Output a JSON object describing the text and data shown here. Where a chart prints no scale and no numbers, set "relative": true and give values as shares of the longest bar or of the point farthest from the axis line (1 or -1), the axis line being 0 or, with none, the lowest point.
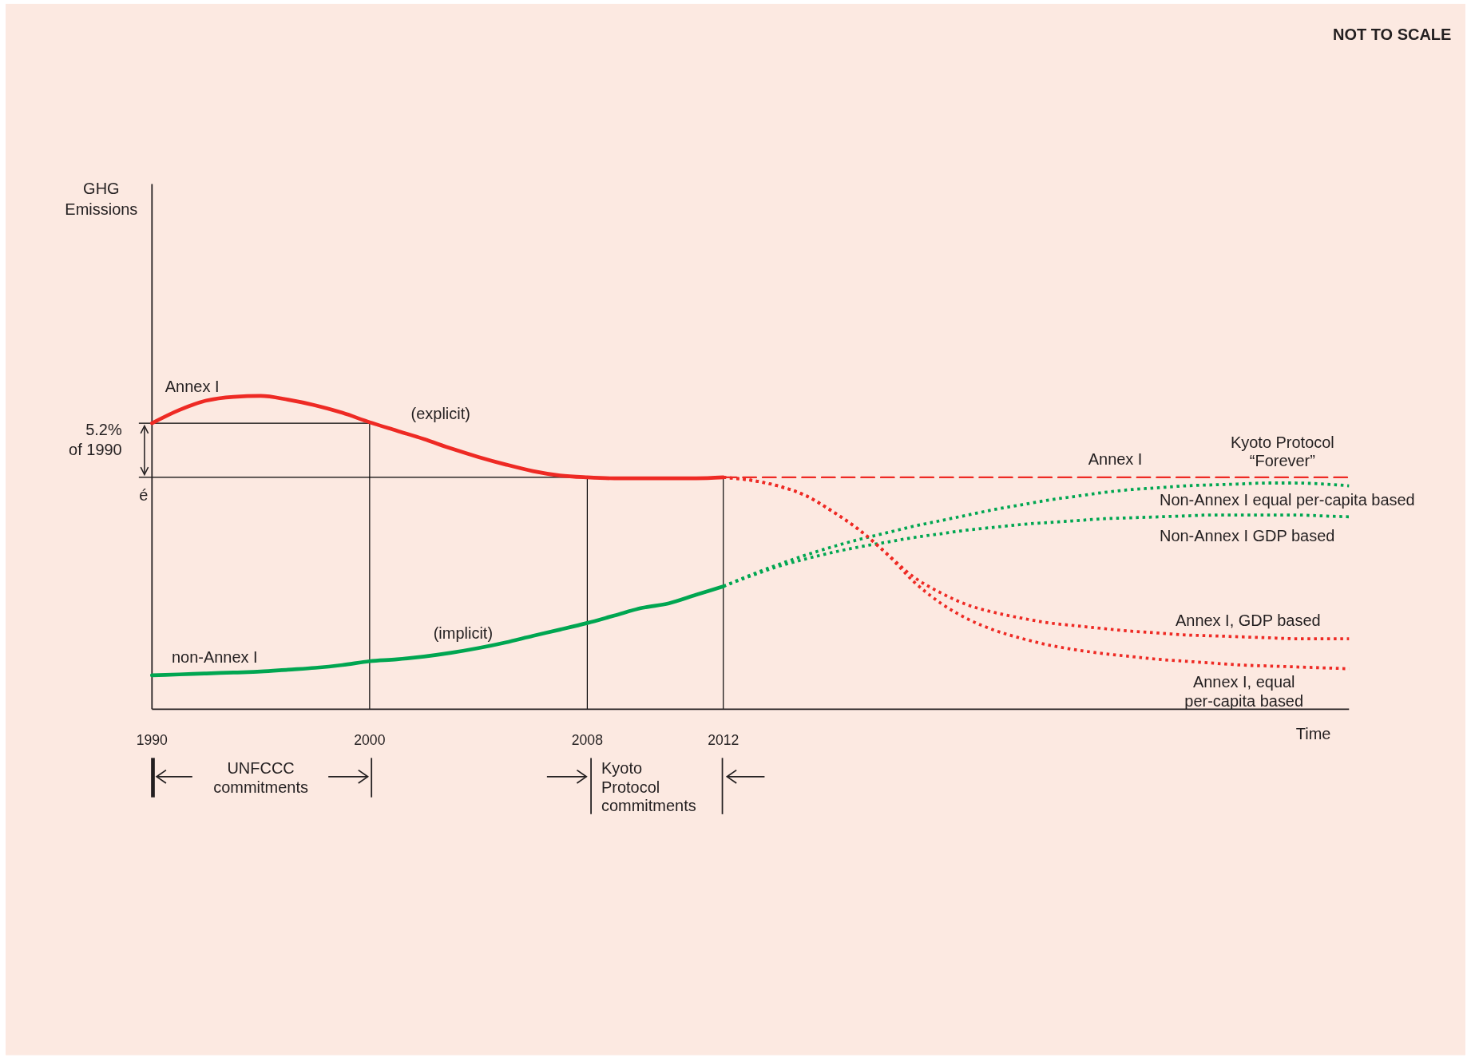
{
  "chart_data": {
    "type": "line",
    "relative": true,
    "xlabel": "Time",
    "categories": [
      "1990",
      null,
      null,
      null,
      null,
      null,
      null,
      null,
      "2000",
      null,
      null,
      null,
      null,
      null,
      null,
      null,
      "2008",
      null,
      null,
      null,
      null,
      "2012",
      null,
      null,
      null,
      null,
      null,
      null,
      null,
      null,
      null,
      null,
      null,
      null,
      null,
      null,
      null,
      null,
      null,
      null,
      null,
      null,
      null,
      null,
      null
    ],
    "annotations": [
      "NOT TO SCALE",
      "(explicit)",
      "(implicit)",
      "5.2%\nof  1990",
      "é",
      "Kyoto Protocol\n“Forever”",
      "UNFCCC\ncommitments",
      "Kyoto\nProtocol\ncommitments",
      "GHG\nEmissions"
    ],
    "ref_lines": [
      {
        "axis": "y",
        "value": 0.913,
        "color": "#000000"
      },
      {
        "axis": "y",
        "value": 0.74,
        "color": "#000000"
      },
      {
        "axis": "x",
        "value": "2000",
        "color": "#000000"
      },
      {
        "axis": "x",
        "value": "2008",
        "color": "#000000"
      },
      {
        "axis": "x",
        "value": "2012",
        "color": "#000000"
      }
    ],
    "series": [
      {
        "name": "Annex I",
        "color": "#ee2a24",
        "line_style": "solid",
        "values": [
          0.913,
          0.955,
          0.985,
          0.997,
          1,
          0.988,
          0.97,
          0.946,
          0.916,
          0.889,
          0.862,
          0.832,
          0.805,
          0.781,
          0.76,
          0.746,
          0.74,
          0.737,
          0.737,
          0.737,
          0.737,
          0.74,
          null,
          null,
          null,
          null,
          null,
          null,
          null,
          null,
          null,
          null,
          null,
          null,
          null,
          null,
          null,
          null,
          null,
          null,
          null,
          null,
          null,
          null,
          null
        ]
      },
      {
        "name": "non-Annex I",
        "color": "#00a651",
        "line_style": "solid",
        "values": [
          0.108,
          0.111,
          0.114,
          0.117,
          0.12,
          0.126,
          0.132,
          0.141,
          0.153,
          0.159,
          0.168,
          0.18,
          0.195,
          0.213,
          0.234,
          0.254,
          0.275,
          0.299,
          0.323,
          0.338,
          0.365,
          0.392,
          null,
          null,
          null,
          null,
          null,
          null,
          null,
          null,
          null,
          null,
          null,
          null,
          null,
          null,
          null,
          null,
          null,
          null,
          null,
          null,
          null,
          null,
          null
        ]
      },
      {
        "name": "Annex I",
        "color": "#ee2a24",
        "line_style": "dashed",
        "values": [
          null,
          null,
          null,
          null,
          null,
          null,
          null,
          null,
          null,
          null,
          null,
          null,
          null,
          null,
          null,
          null,
          null,
          null,
          null,
          null,
          null,
          0.74,
          0.74,
          0.74,
          0.74,
          0.74,
          0.74,
          0.74,
          0.74,
          0.74,
          0.74,
          0.74,
          0.74,
          0.74,
          0.74,
          0.74,
          0.74,
          0.74,
          0.74,
          0.74,
          0.74,
          0.74,
          0.74,
          0.74,
          0.74
        ]
      },
      {
        "name": "Non-Annex I equal per-capita based",
        "color": "#00a651",
        "line_style": "dotted",
        "values": [
          null,
          null,
          null,
          null,
          null,
          null,
          null,
          null,
          null,
          null,
          null,
          null,
          null,
          null,
          null,
          null,
          null,
          null,
          null,
          null,
          null,
          0.392,
          0.428,
          0.461,
          0.491,
          0.518,
          0.542,
          0.563,
          0.584,
          0.602,
          0.62,
          0.638,
          0.653,
          0.668,
          0.68,
          0.692,
          0.701,
          0.707,
          0.713,
          0.716,
          0.719,
          0.722,
          0.722,
          0.719,
          0.713
        ]
      },
      {
        "name": "Non-Annex I GDP based",
        "color": "#00a651",
        "line_style": "dotted",
        "values": [
          null,
          null,
          null,
          null,
          null,
          null,
          null,
          null,
          null,
          null,
          null,
          null,
          null,
          null,
          null,
          null,
          null,
          null,
          null,
          null,
          null,
          0.392,
          0.425,
          0.455,
          0.479,
          0.5,
          0.518,
          0.533,
          0.548,
          0.56,
          0.572,
          0.581,
          0.59,
          0.596,
          0.602,
          0.608,
          0.611,
          0.614,
          0.617,
          0.62,
          0.62,
          0.62,
          0.62,
          0.617,
          0.614
        ]
      },
      {
        "name": "Annex I, GDP based",
        "color": "#ee2a24",
        "line_style": "dotted",
        "values": [
          null,
          null,
          null,
          null,
          null,
          null,
          null,
          null,
          null,
          null,
          null,
          null,
          null,
          null,
          null,
          null,
          null,
          null,
          null,
          null,
          null,
          0.74,
          0.731,
          0.713,
          0.683,
          0.632,
          0.572,
          0.497,
          0.422,
          0.371,
          0.332,
          0.308,
          0.29,
          0.275,
          0.266,
          0.257,
          0.249,
          0.243,
          0.237,
          0.234,
          0.231,
          0.228,
          0.225,
          0.225,
          0.225
        ]
      },
      {
        "name": "Annex I, equal\nper-capita based",
        "color": "#ee2a24",
        "line_style": "dotted",
        "values": [
          null,
          null,
          null,
          null,
          null,
          null,
          null,
          null,
          null,
          null,
          null,
          null,
          null,
          null,
          null,
          null,
          null,
          null,
          null,
          null,
          null,
          0.74,
          0.731,
          0.713,
          0.683,
          0.632,
          0.572,
          0.497,
          0.407,
          0.338,
          0.287,
          0.251,
          0.225,
          0.204,
          0.189,
          0.177,
          0.168,
          0.159,
          0.153,
          0.147,
          0.141,
          0.138,
          0.135,
          0.132,
          0.129
        ]
      }
    ]
  }
}
